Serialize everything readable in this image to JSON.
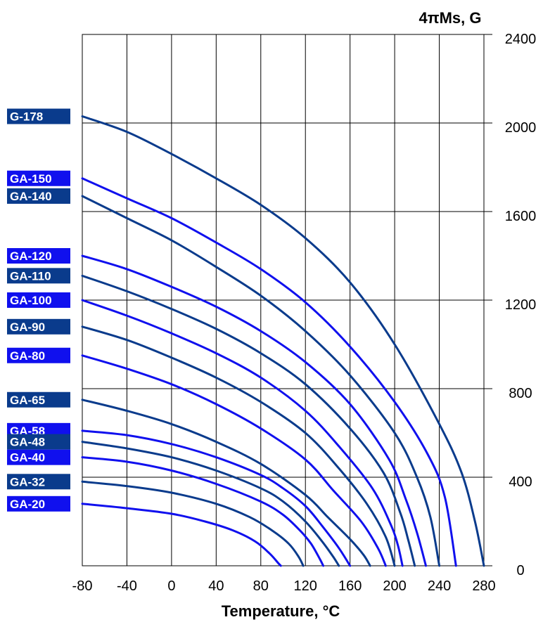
{
  "chart_data": {
    "type": "line",
    "title": "",
    "xlabel": "Temperature, °C",
    "ylabel": "4πMs, G",
    "xlim": [
      -80,
      280
    ],
    "ylim": [
      0,
      2400
    ],
    "x_ticks": [
      "-80",
      "-40",
      "0",
      "40",
      "80",
      "120",
      "160",
      "200",
      "240",
      "280"
    ],
    "y_ticks": [
      "0",
      "400",
      "800",
      "1200",
      "1600",
      "2000",
      "2400"
    ],
    "grid": true,
    "colors": {
      "dark": "#0a3b8c",
      "bright": "#1010ee"
    },
    "series": [
      {
        "name": "G-178",
        "color": "dark",
        "label_value": 2030,
        "points": [
          [
            -80,
            2030
          ],
          [
            -40,
            1960
          ],
          [
            0,
            1860
          ],
          [
            40,
            1750
          ],
          [
            80,
            1630
          ],
          [
            120,
            1480
          ],
          [
            160,
            1280
          ],
          [
            200,
            1000
          ],
          [
            240,
            640
          ],
          [
            260,
            420
          ],
          [
            272,
            200
          ],
          [
            280,
            0
          ]
        ]
      },
      {
        "name": "GA-150",
        "color": "bright",
        "label_value": 1750,
        "points": [
          [
            -80,
            1750
          ],
          [
            -40,
            1660
          ],
          [
            0,
            1570
          ],
          [
            40,
            1460
          ],
          [
            80,
            1340
          ],
          [
            120,
            1190
          ],
          [
            160,
            990
          ],
          [
            200,
            740
          ],
          [
            230,
            500
          ],
          [
            245,
            310
          ],
          [
            255,
            0
          ]
        ]
      },
      {
        "name": "GA-140",
        "color": "dark",
        "label_value": 1670,
        "points": [
          [
            -80,
            1670
          ],
          [
            -40,
            1570
          ],
          [
            0,
            1470
          ],
          [
            40,
            1350
          ],
          [
            80,
            1220
          ],
          [
            120,
            1060
          ],
          [
            160,
            860
          ],
          [
            200,
            600
          ],
          [
            220,
            400
          ],
          [
            232,
            220
          ],
          [
            240,
            0
          ]
        ]
      },
      {
        "name": "GA-120",
        "color": "bright",
        "label_value": 1400,
        "points": [
          [
            -80,
            1400
          ],
          [
            -40,
            1340
          ],
          [
            0,
            1260
          ],
          [
            40,
            1170
          ],
          [
            80,
            1060
          ],
          [
            120,
            920
          ],
          [
            160,
            730
          ],
          [
            195,
            480
          ],
          [
            210,
            300
          ],
          [
            220,
            150
          ],
          [
            228,
            0
          ]
        ]
      },
      {
        "name": "GA-110",
        "color": "dark",
        "label_value": 1310,
        "points": [
          [
            -80,
            1310
          ],
          [
            -40,
            1240
          ],
          [
            0,
            1160
          ],
          [
            40,
            1070
          ],
          [
            80,
            960
          ],
          [
            120,
            820
          ],
          [
            160,
            620
          ],
          [
            190,
            420
          ],
          [
            205,
            240
          ],
          [
            212,
            120
          ],
          [
            218,
            0
          ]
        ]
      },
      {
        "name": "GA-100",
        "color": "bright",
        "label_value": 1200,
        "points": [
          [
            -80,
            1200
          ],
          [
            -40,
            1130
          ],
          [
            0,
            1050
          ],
          [
            40,
            960
          ],
          [
            80,
            850
          ],
          [
            120,
            700
          ],
          [
            150,
            540
          ],
          [
            180,
            350
          ],
          [
            197,
            180
          ],
          [
            203,
            90
          ],
          [
            207,
            0
          ]
        ]
      },
      {
        "name": "GA-90",
        "color": "dark",
        "label_value": 1080,
        "points": [
          [
            -80,
            1080
          ],
          [
            -40,
            1020
          ],
          [
            0,
            940
          ],
          [
            40,
            850
          ],
          [
            80,
            740
          ],
          [
            120,
            600
          ],
          [
            150,
            440
          ],
          [
            175,
            280
          ],
          [
            192,
            130
          ],
          [
            200,
            0
          ]
        ]
      },
      {
        "name": "GA-80",
        "color": "bright",
        "label_value": 950,
        "points": [
          [
            -80,
            950
          ],
          [
            -40,
            890
          ],
          [
            0,
            820
          ],
          [
            40,
            730
          ],
          [
            80,
            620
          ],
          [
            120,
            480
          ],
          [
            145,
            340
          ],
          [
            170,
            200
          ],
          [
            185,
            80
          ],
          [
            192,
            0
          ]
        ]
      },
      {
        "name": "GA-65",
        "color": "dark",
        "label_value": 750,
        "points": [
          [
            -80,
            750
          ],
          [
            -40,
            700
          ],
          [
            0,
            640
          ],
          [
            40,
            560
          ],
          [
            80,
            460
          ],
          [
            120,
            320
          ],
          [
            140,
            220
          ],
          [
            160,
            120
          ],
          [
            172,
            50
          ],
          [
            178,
            0
          ]
        ]
      },
      {
        "name": "GA-58",
        "color": "bright",
        "label_value": 610,
        "points": [
          [
            -80,
            610
          ],
          [
            -40,
            590
          ],
          [
            0,
            550
          ],
          [
            40,
            490
          ],
          [
            80,
            410
          ],
          [
            100,
            350
          ],
          [
            120,
            270
          ],
          [
            135,
            180
          ],
          [
            150,
            80
          ],
          [
            160,
            0
          ]
        ]
      },
      {
        "name": "GA-48",
        "color": "dark",
        "label_value": 560,
        "points": [
          [
            -80,
            560
          ],
          [
            -40,
            530
          ],
          [
            0,
            490
          ],
          [
            40,
            430
          ],
          [
            80,
            350
          ],
          [
            100,
            290
          ],
          [
            120,
            200
          ],
          [
            135,
            110
          ],
          [
            145,
            40
          ],
          [
            150,
            0
          ]
        ]
      },
      {
        "name": "GA-40",
        "color": "bright",
        "label_value": 490,
        "points": [
          [
            -80,
            490
          ],
          [
            -40,
            470
          ],
          [
            0,
            430
          ],
          [
            40,
            370
          ],
          [
            80,
            290
          ],
          [
            100,
            230
          ],
          [
            115,
            160
          ],
          [
            125,
            100
          ],
          [
            133,
            30
          ],
          [
            136,
            0
          ]
        ]
      },
      {
        "name": "GA-32",
        "color": "dark",
        "label_value": 380,
        "points": [
          [
            -80,
            380
          ],
          [
            -40,
            360
          ],
          [
            0,
            330
          ],
          [
            40,
            280
          ],
          [
            70,
            220
          ],
          [
            90,
            160
          ],
          [
            105,
            100
          ],
          [
            114,
            40
          ],
          [
            118,
            0
          ]
        ]
      },
      {
        "name": "GA-20",
        "color": "bright",
        "label_value": 280,
        "points": [
          [
            -80,
            280
          ],
          [
            -40,
            260
          ],
          [
            0,
            235
          ],
          [
            30,
            200
          ],
          [
            55,
            160
          ],
          [
            75,
            110
          ],
          [
            88,
            55
          ],
          [
            96,
            10
          ],
          [
            98,
            0
          ]
        ]
      }
    ],
    "labels": [
      {
        "text": "G-178",
        "color": "dark",
        "label_value": 2030
      },
      {
        "text": "GA-150",
        "color": "bright",
        "label_value": 1750
      },
      {
        "text": "GA-140",
        "color": "dark",
        "label_value": 1670
      },
      {
        "text": "GA-120",
        "color": "bright",
        "label_value": 1400
      },
      {
        "text": "GA-110",
        "color": "dark",
        "label_value": 1310
      },
      {
        "text": "GA-100",
        "color": "bright",
        "label_value": 1200
      },
      {
        "text": "GA-90",
        "color": "dark",
        "label_value": 1080
      },
      {
        "text": "GA-80",
        "color": "bright",
        "label_value": 950
      },
      {
        "text": "GA-65",
        "color": "dark",
        "label_value": 750
      },
      {
        "text": "GA-58",
        "color": "bright",
        "label_value": 610
      },
      {
        "text": "GA-48",
        "color": "dark",
        "label_value": 560
      },
      {
        "text": "GA-40",
        "color": "bright",
        "label_value": 490
      },
      {
        "text": "GA-32",
        "color": "dark",
        "label_value": 380
      },
      {
        "text": "GA-20",
        "color": "bright",
        "label_value": 280
      }
    ]
  }
}
